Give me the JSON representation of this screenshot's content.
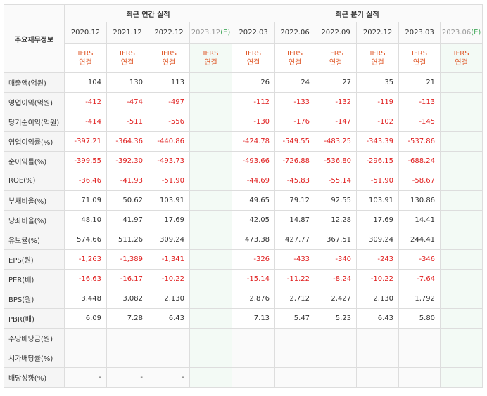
{
  "header": {
    "corner_label": "주요재무정보",
    "annual_group": "최근 연간 실적",
    "quarter_group": "최근 분기 실적",
    "annual_periods": [
      "2020.12",
      "2021.12",
      "2022.12",
      "2023.12"
    ],
    "annual_est_suffix": "(E)",
    "quarter_periods": [
      "2022.03",
      "2022.06",
      "2022.09",
      "2022.12",
      "2023.03",
      "2023.06"
    ],
    "quarter_est_suffix": "(E)",
    "ifrs_line1": "IFRS",
    "ifrs_line2": "연결"
  },
  "rows": [
    {
      "label": "매출액(억원)",
      "values": [
        "104",
        "130",
        "113",
        "",
        "26",
        "24",
        "27",
        "35",
        "21",
        ""
      ]
    },
    {
      "label": "영업이익(억원)",
      "values": [
        "-412",
        "-474",
        "-497",
        "",
        "-112",
        "-133",
        "-132",
        "-119",
        "-113",
        ""
      ]
    },
    {
      "label": "당기순이익(억원)",
      "values": [
        "-414",
        "-511",
        "-556",
        "",
        "-130",
        "-176",
        "-147",
        "-102",
        "-145",
        ""
      ]
    },
    {
      "label": "영업이익률(%)",
      "values": [
        "-397.21",
        "-364.36",
        "-440.86",
        "",
        "-424.78",
        "-549.55",
        "-483.25",
        "-343.39",
        "-537.86",
        ""
      ]
    },
    {
      "label": "순이익률(%)",
      "values": [
        "-399.55",
        "-392.30",
        "-493.73",
        "",
        "-493.66",
        "-726.88",
        "-536.80",
        "-296.15",
        "-688.24",
        ""
      ]
    },
    {
      "label": "ROE(%)",
      "values": [
        "-36.46",
        "-41.93",
        "-51.90",
        "",
        "-44.69",
        "-45.83",
        "-55.14",
        "-51.90",
        "-58.67",
        ""
      ]
    },
    {
      "label": "부채비율(%)",
      "values": [
        "71.09",
        "50.62",
        "103.91",
        "",
        "49.65",
        "79.12",
        "92.55",
        "103.91",
        "130.86",
        ""
      ]
    },
    {
      "label": "당좌비율(%)",
      "values": [
        "48.10",
        "41.97",
        "17.69",
        "",
        "42.05",
        "14.87",
        "12.28",
        "17.69",
        "14.41",
        ""
      ]
    },
    {
      "label": "유보율(%)",
      "values": [
        "574.66",
        "511.26",
        "309.24",
        "",
        "473.38",
        "427.77",
        "367.51",
        "309.24",
        "244.41",
        ""
      ]
    },
    {
      "label": "EPS(원)",
      "values": [
        "-1,263",
        "-1,389",
        "-1,341",
        "",
        "-326",
        "-433",
        "-340",
        "-243",
        "-346",
        ""
      ]
    },
    {
      "label": "PER(배)",
      "values": [
        "-16.63",
        "-16.17",
        "-10.22",
        "",
        "-15.14",
        "-11.22",
        "-8.24",
        "-10.22",
        "-7.64",
        ""
      ]
    },
    {
      "label": "BPS(원)",
      "values": [
        "3,448",
        "3,082",
        "2,130",
        "",
        "2,876",
        "2,712",
        "2,427",
        "2,130",
        "1,792",
        ""
      ]
    },
    {
      "label": "PBR(배)",
      "values": [
        "6.09",
        "7.28",
        "6.43",
        "",
        "7.13",
        "5.47",
        "5.23",
        "6.43",
        "5.80",
        ""
      ]
    },
    {
      "label": "주당배당금(원)",
      "values": [
        "",
        "",
        "",
        "",
        "",
        "",
        "",
        "",
        "",
        ""
      ]
    },
    {
      "label": "시가배당률(%)",
      "values": [
        "",
        "",
        "",
        "",
        "",
        "",
        "",
        "",
        "",
        ""
      ]
    },
    {
      "label": "배당성향(%)",
      "values": [
        "-",
        "-",
        "-",
        "",
        "",
        "",
        "",
        "",
        "",
        ""
      ]
    }
  ],
  "colors": {
    "negative": "#e02020",
    "ifrs": "#e05a2b",
    "estimate_bg": "#f3faf5",
    "estimate_mark": "#45a95c"
  }
}
